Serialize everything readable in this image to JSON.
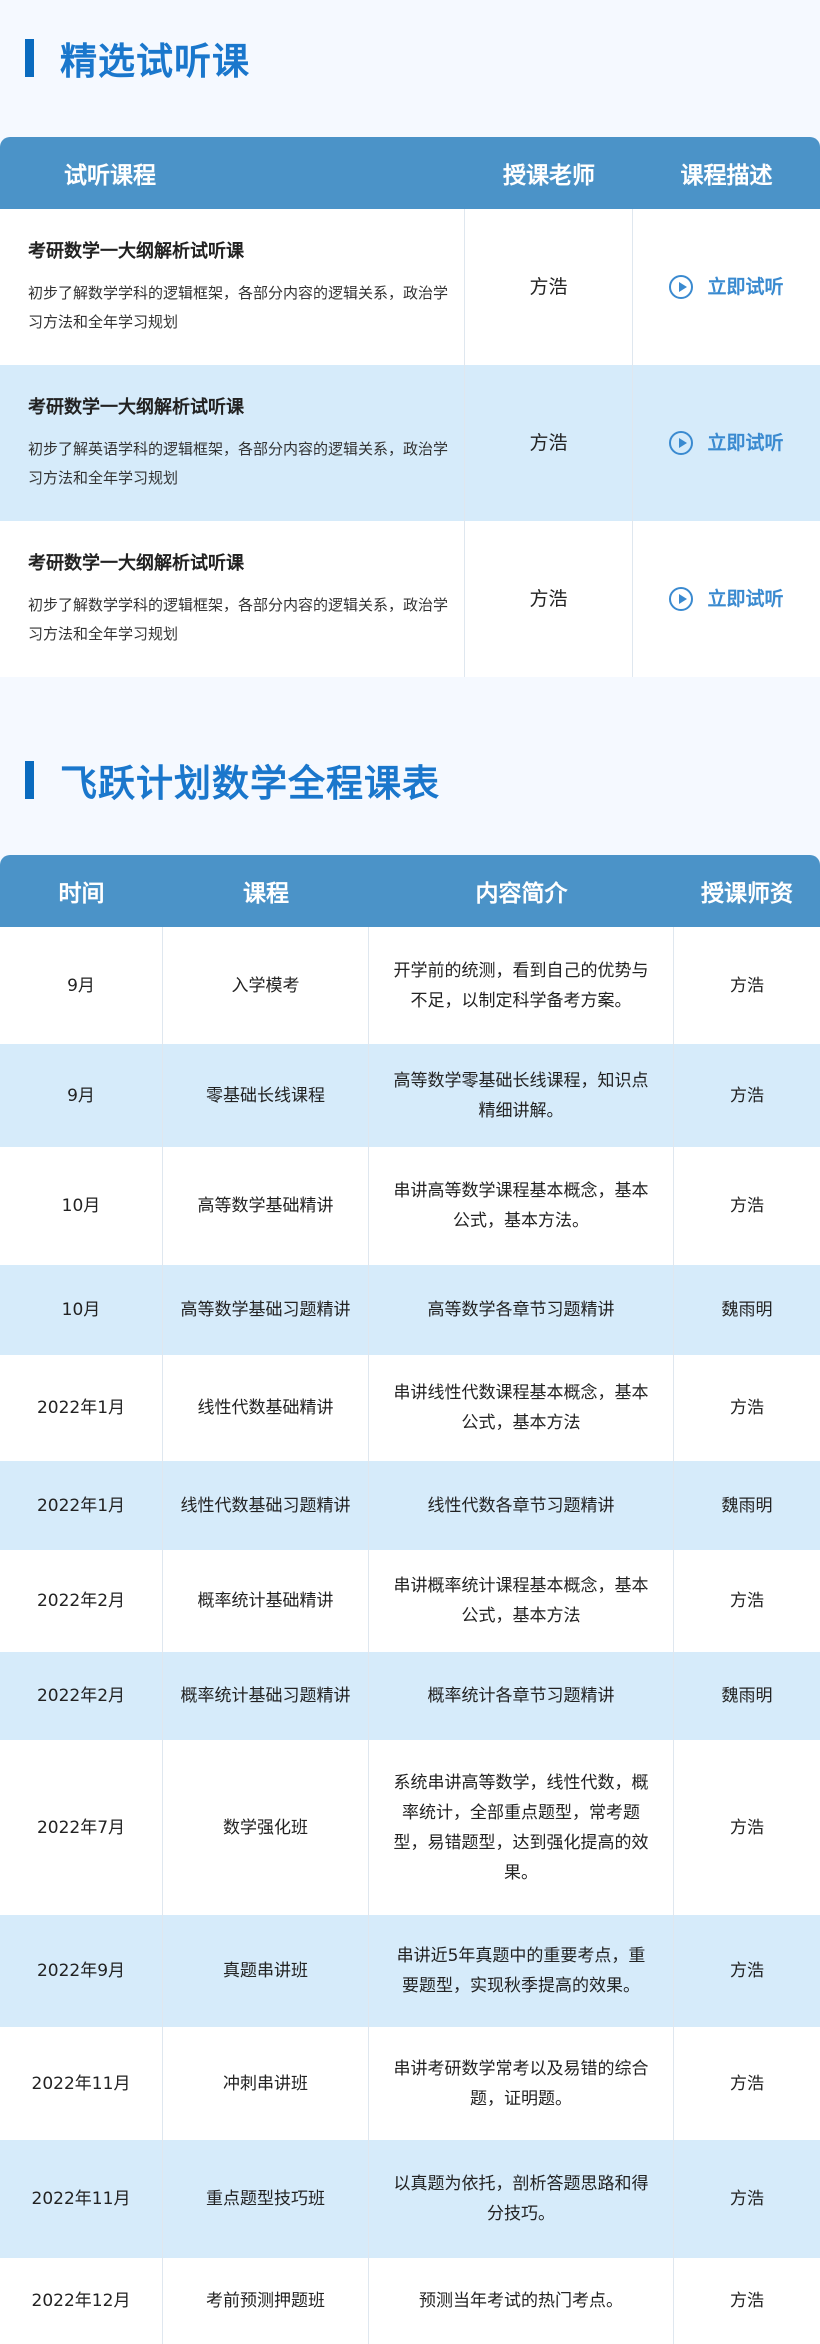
{
  "section1": {
    "title": "精选试听课",
    "headers": [
      "试听课程",
      "授课老师",
      "课程描述"
    ],
    "rows": [
      {
        "title": "考研数学一大纲解析试听课",
        "desc": "初步了解数学学科的逻辑框架，各部分内容的逻辑关系，政治学习方法和全年学习规划",
        "teacher": "方浩",
        "action": "立即试听"
      },
      {
        "title": "考研数学一大纲解析试听课",
        "desc": "初步了解英语学科的逻辑框架，各部分内容的逻辑关系，政治学习方法和全年学习规划",
        "teacher": "方浩",
        "action": "立即试听"
      },
      {
        "title": "考研数学一大纲解析试听课",
        "desc": "初步了解数学学科的逻辑框架，各部分内容的逻辑关系，政治学习方法和全年学习规划",
        "teacher": "方浩",
        "action": "立即试听"
      }
    ]
  },
  "section2": {
    "title": "飞跃计划数学全程课表",
    "headers": [
      "时间",
      "课程",
      "内容简介",
      "授课师资"
    ],
    "rows": [
      {
        "time": "9月",
        "course": "入学模考",
        "intro": "开学前的统测，看到自己的优势与不足，以制定科学备考方案。",
        "teacher": "方浩"
      },
      {
        "time": "9月",
        "course": "零基础长线课程",
        "intro": "高等数学零基础长线课程，知识点精细讲解。",
        "teacher": "方浩"
      },
      {
        "time": "10月",
        "course": "高等数学基础精讲",
        "intro": "串讲高等数学课程基本概念，基本公式，基本方法。",
        "teacher": "方浩"
      },
      {
        "time": "10月",
        "course": "高等数学基础习题精讲",
        "intro": "高等数学各章节习题精讲",
        "teacher": "魏雨明"
      },
      {
        "time": "2022年1月",
        "course": "线性代数基础精讲",
        "intro": "串讲线性代数课程基本概念，基本公式，基本方法",
        "teacher": "方浩"
      },
      {
        "time": "2022年1月",
        "course": "线性代数基础习题精讲",
        "intro": "线性代数各章节习题精讲",
        "teacher": "魏雨明"
      },
      {
        "time": "2022年2月",
        "course": "概率统计基础精讲",
        "intro": "串讲概率统计课程基本概念，基本公式，基本方法",
        "teacher": "方浩"
      },
      {
        "time": "2022年2月",
        "course": "概率统计基础习题精讲",
        "intro": "概率统计各章节习题精讲",
        "teacher": "魏雨明"
      },
      {
        "time": "2022年7月",
        "course": "数学强化班",
        "intro": "系统串讲高等数学，线性代数，概率统计，全部重点题型，常考题型，易错题型，达到强化提高的效果。",
        "teacher": "方浩"
      },
      {
        "time": "2022年9月",
        "course": "真题串讲班",
        "intro": "串讲近5年真题中的重要考点，重要题型，实现秋季提高的效果。",
        "teacher": "方浩"
      },
      {
        "time": "2022年11月",
        "course": "冲刺串讲班",
        "intro": "串讲考研数学常考以及易错的综合题，证明题。",
        "teacher": "方浩"
      },
      {
        "time": "2022年11月",
        "course": "重点题型技巧班",
        "intro": "以真题为依托，剖析答题思路和得分技巧。",
        "teacher": "方浩"
      },
      {
        "time": "2022年12月",
        "course": "考前预测押题班",
        "intro": "预测当年考试的热门考点。",
        "teacher": "方浩"
      }
    ]
  },
  "colors": {
    "header": "#4b93c8",
    "alt_row": "#d6ebfa",
    "title": "#1a77cc"
  }
}
